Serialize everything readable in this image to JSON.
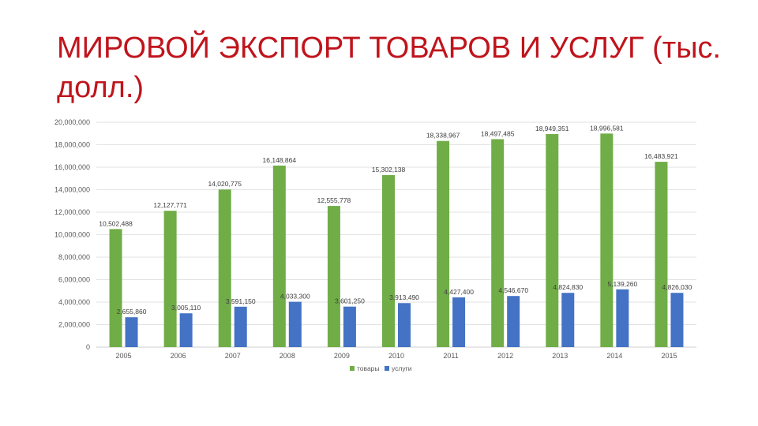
{
  "slide": {
    "title": "МИРОВОЙ ЭКСПОРТ ТОВАРОВ И УСЛУГ (тыс. долл.)"
  },
  "chart_data": {
    "type": "bar",
    "categories": [
      "2005",
      "2006",
      "2007",
      "2008",
      "2009",
      "2010",
      "2011",
      "2012",
      "2013",
      "2014",
      "2015"
    ],
    "series": [
      {
        "name": "товары",
        "color": "#70ad47",
        "values": [
          10502488,
          12127771,
          14020775,
          16148864,
          12555778,
          15302138,
          18338967,
          18497485,
          18949351,
          18996581,
          16483921
        ],
        "labels": [
          "10,502,488",
          "12,127,771",
          "14,020,775",
          "16,148,864",
          "12,555,778",
          "15,302,138",
          "18,338,967",
          "18,497,485",
          "18,949,351",
          "18,996,581",
          "16,483,921"
        ]
      },
      {
        "name": "услуги",
        "color": "#4472c4",
        "values": [
          2655860,
          3005110,
          3591150,
          4033300,
          3601250,
          3913490,
          4427400,
          4546670,
          4824830,
          5139260,
          4826030
        ],
        "labels": [
          "2,655,860",
          "3,005,110",
          "3,591,150",
          "4,033,300",
          "3,601,250",
          "3,913,490",
          "4,427,400",
          "4,546,670",
          "4,824,830",
          "5,139,260",
          "4,826,030"
        ]
      }
    ],
    "ylim": [
      0,
      20000000
    ],
    "yticks": [
      0,
      2000000,
      4000000,
      6000000,
      8000000,
      10000000,
      12000000,
      14000000,
      16000000,
      18000000,
      20000000
    ],
    "ytick_labels": [
      "0",
      "2,000,000",
      "4,000,000",
      "6,000,000",
      "8,000,000",
      "10,000,000",
      "12,000,000",
      "14,000,000",
      "16,000,000",
      "18,000,000",
      "20,000,000"
    ],
    "grid": true,
    "legend_position": "bottom"
  }
}
